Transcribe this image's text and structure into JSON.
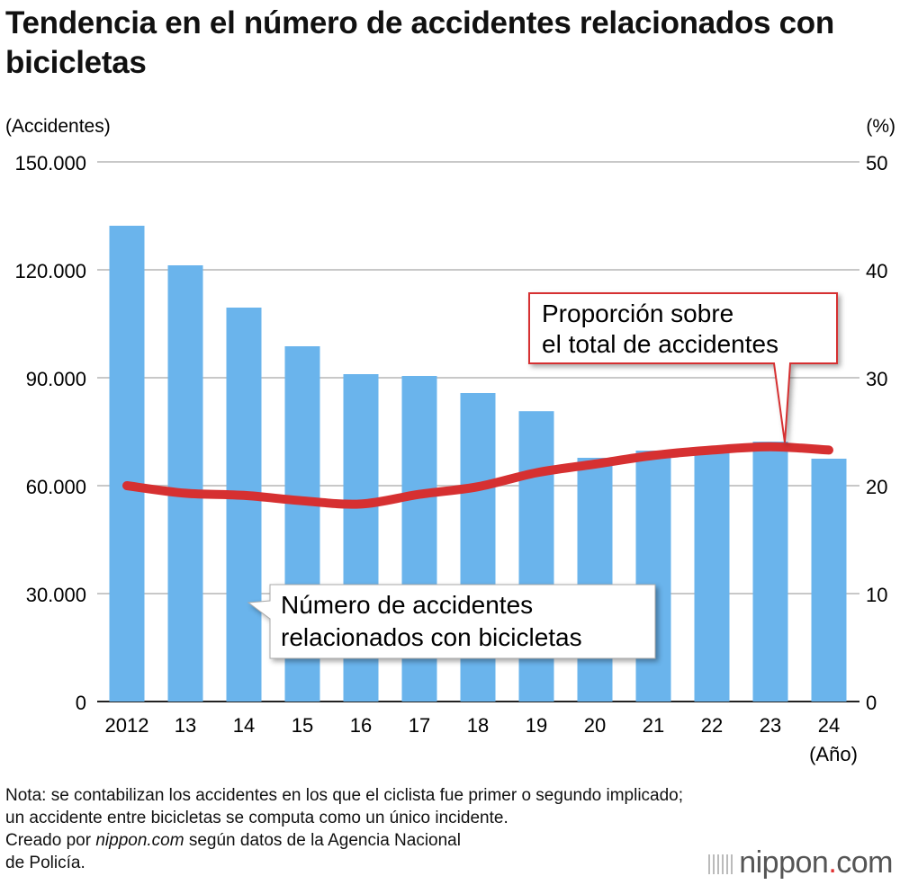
{
  "title": "Tendencia en el número de accidentes relacionados con bicicletas",
  "chart_data": {
    "type": "bar+line",
    "title": "Tendencia en el número de accidentes relacionados con bicicletas",
    "categories": [
      "2012",
      "13",
      "14",
      "15",
      "16",
      "17",
      "18",
      "19",
      "20",
      "21",
      "22",
      "23",
      "24"
    ],
    "x_unit": "(Año)",
    "y_left": {
      "label": "(Accidentes)",
      "lim": [
        0,
        150000
      ],
      "ticks": [
        "0",
        "30.000",
        "60.000",
        "90.000",
        "120.000",
        "150.000"
      ]
    },
    "y_right": {
      "label": "(%)",
      "lim": [
        0,
        50
      ],
      "ticks": [
        "0",
        "10",
        "20",
        "30",
        "40",
        "50"
      ]
    },
    "grid": true,
    "series": [
      {
        "name": "Número de accidentes relacionados con bicicletas",
        "type": "bar",
        "axis": "left",
        "color": "#6ab4ec",
        "values": [
          132250,
          121250,
          109500,
          98750,
          91000,
          90500,
          85750,
          80700,
          67750,
          69750,
          70500,
          72250,
          67500
        ]
      },
      {
        "name": "Proporción sobre el total de accidentes",
        "type": "line",
        "axis": "right",
        "color": "#d63031",
        "values": [
          20.0,
          19.3,
          19.1,
          18.6,
          18.3,
          19.2,
          19.9,
          21.2,
          22.0,
          22.8,
          23.3,
          23.6,
          23.3
        ]
      }
    ],
    "annotations": {
      "line_label": [
        "Proporción sobre",
        "el total de accidentes"
      ],
      "bar_label": [
        "Número de accidentes",
        "relacionados con bicicletas"
      ]
    }
  },
  "note": [
    "Nota: se contabilizan los accidentes en los que el ciclista fue primer o segundo implicado;",
    "un accidente entre bicicletas se computa como un único incidente.",
    "Creado por nippon.com según datos de la Agencia Nacional",
    "de Policía."
  ],
  "logo": "nippon.com"
}
